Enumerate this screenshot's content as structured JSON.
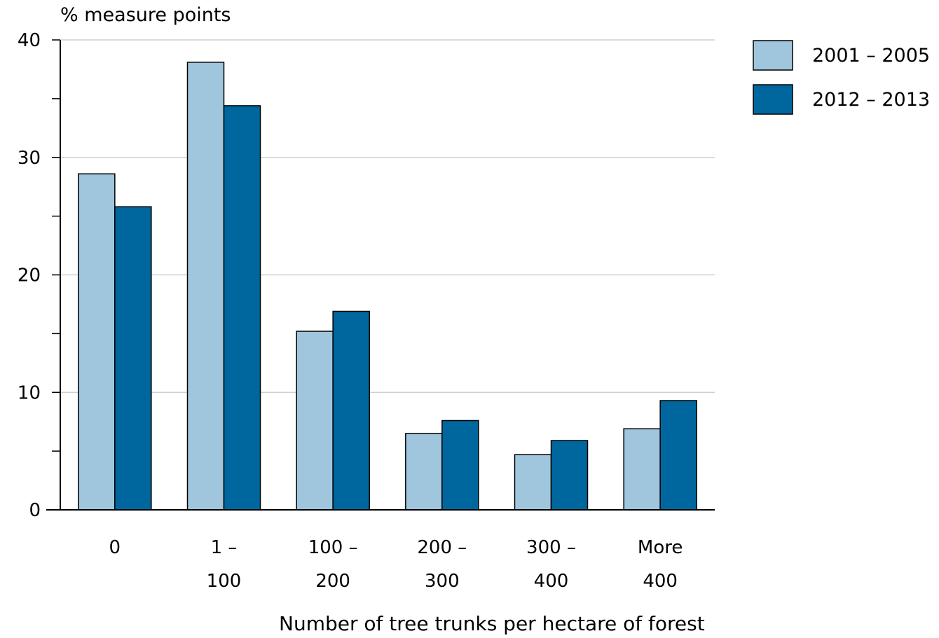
{
  "chart_data": {
    "type": "bar",
    "ylabel": "% measure points",
    "xlabel": "Number of tree trunks per hectare of forest",
    "categories": [
      [
        "0"
      ],
      [
        "1 –",
        "100"
      ],
      [
        "100 –",
        "200"
      ],
      [
        "200 –",
        "300"
      ],
      [
        "300 –",
        "400"
      ],
      [
        "More",
        "400"
      ]
    ],
    "series": [
      {
        "name": "2001 – 2005",
        "color": "#9fc6dd",
        "values": [
          28.6,
          38.1,
          15.2,
          6.5,
          4.7,
          6.9
        ]
      },
      {
        "name": "2012 – 2013",
        "color": "#00679e",
        "values": [
          25.8,
          34.4,
          16.9,
          7.6,
          5.9,
          9.3
        ]
      }
    ],
    "ylim": [
      0,
      40
    ],
    "yticks": [
      0,
      10,
      20,
      30,
      40
    ],
    "grid": true,
    "legend": "top-right"
  }
}
